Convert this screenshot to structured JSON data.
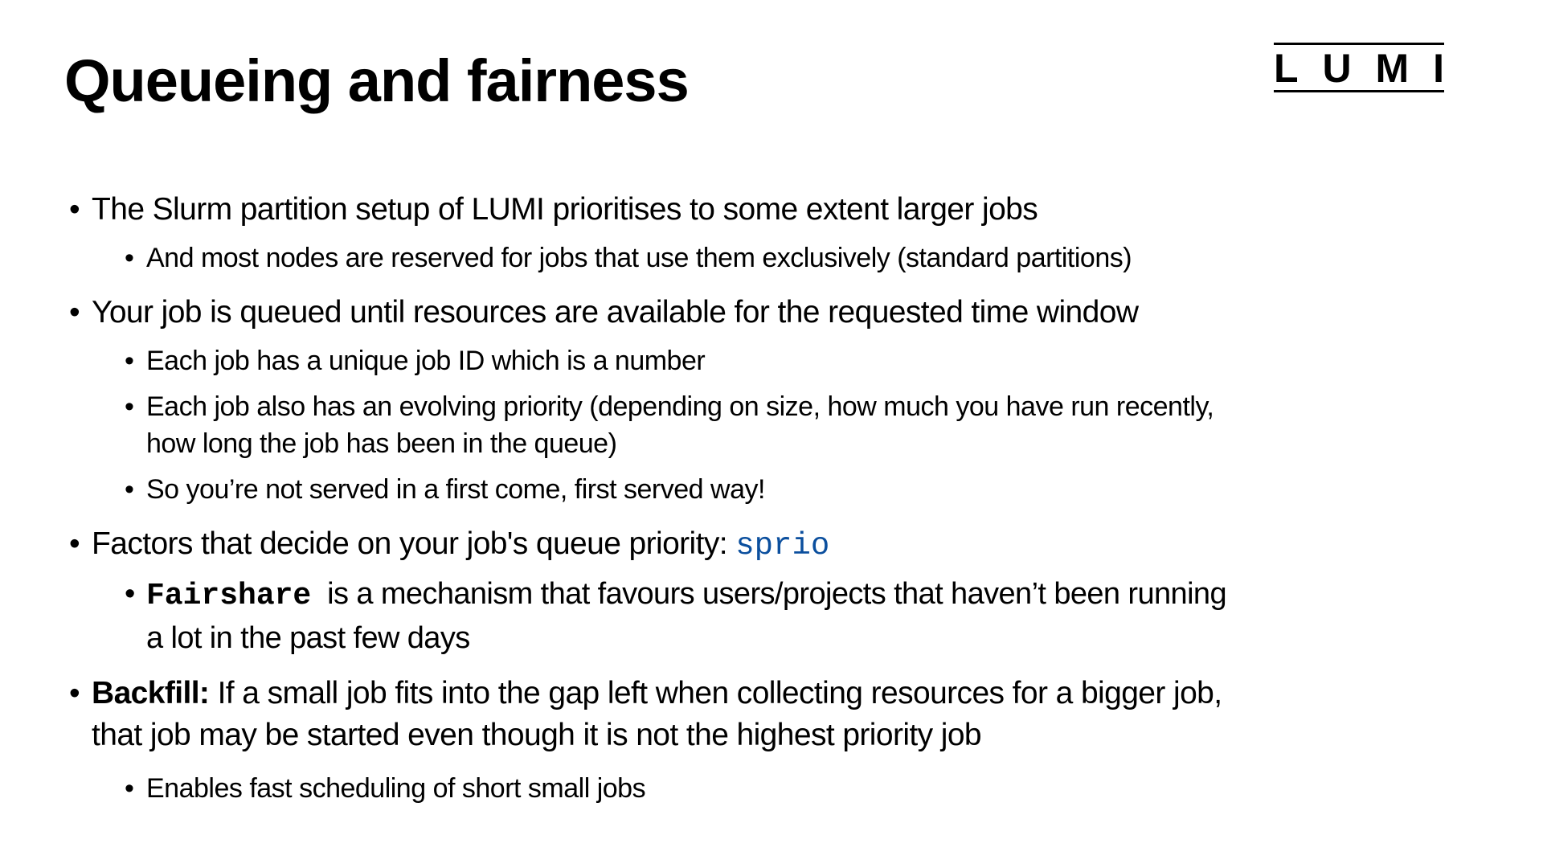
{
  "slide": {
    "title": "Queueing and fairness",
    "logo": [
      "L",
      "U",
      "M",
      "I"
    ],
    "bullet_char": "•",
    "code_color": "#0b4f9e",
    "items": [
      {
        "lines": [
          "The Slurm partition setup of LUMI prioritises to some extent larger jobs"
        ]
      },
      {
        "lines": [
          "And most nodes are reserved for jobs that use them exclusively (standard partitions)"
        ]
      },
      {
        "lines": [
          "Your job is queued until resources are available for the requested time window"
        ]
      },
      {
        "lines": [
          "Each job has a unique job ID which is a number"
        ]
      },
      {
        "lines": [
          "Each job also has an evolving priority (depending on size, how much you have run recently,",
          "how long the job has been in the queue)"
        ]
      },
      {
        "lines": [
          "So you’re not served in a first come, first served way!"
        ]
      },
      {
        "prefix": "Factors that decide on your job's queue priority: ",
        "code": "sprio"
      },
      {
        "code": "Fairshare",
        "lines": [
          "  is a mechanism that favours users/projects that haven’t been running",
          "a lot in the past few days"
        ]
      },
      {
        "bold": "Backfill:",
        "lines": [
          " If a small job fits into the gap left when collecting resources for a bigger job,",
          "that job may be started even though it is not the highest priority job"
        ]
      },
      {
        "lines": [
          "Enables fast scheduling of short small jobs"
        ]
      }
    ]
  }
}
